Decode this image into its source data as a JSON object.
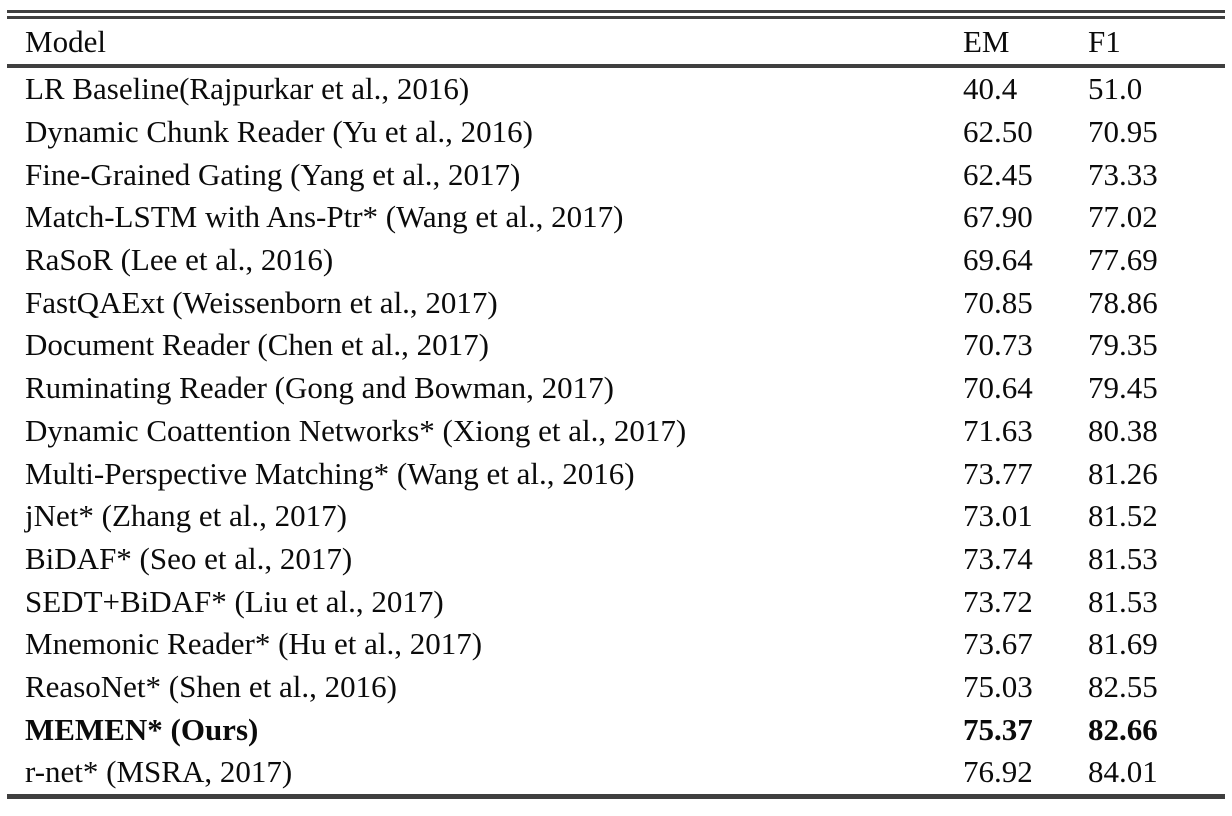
{
  "table": {
    "columns": {
      "model": "Model",
      "em": "EM",
      "f1": "F1"
    },
    "rows": [
      {
        "model": "LR Baseline(Rajpurkar et al., 2016)",
        "em": "40.4",
        "f1": "51.0",
        "emphasis": false
      },
      {
        "model": "Dynamic Chunk Reader (Yu et al., 2016)",
        "em": "62.50",
        "f1": "70.95",
        "emphasis": false
      },
      {
        "model": "Fine-Grained Gating (Yang et al., 2017)",
        "em": "62.45",
        "f1": "73.33",
        "emphasis": false
      },
      {
        "model": "Match-LSTM with Ans-Ptr* (Wang et al., 2017)",
        "em": "67.90",
        "f1": "77.02",
        "emphasis": false
      },
      {
        "model": "RaSoR (Lee et al., 2016)",
        "em": "69.64",
        "f1": "77.69",
        "emphasis": false
      },
      {
        "model": "FastQAExt (Weissenborn et al., 2017)",
        "em": "70.85",
        "f1": "78.86",
        "emphasis": false
      },
      {
        "model": "Document Reader (Chen et al., 2017)",
        "em": "70.73",
        "f1": "79.35",
        "emphasis": false
      },
      {
        "model": "Ruminating Reader (Gong and Bowman, 2017)",
        "em": "70.64",
        "f1": "79.45",
        "emphasis": false
      },
      {
        "model": "Dynamic Coattention Networks* (Xiong et al., 2017)",
        "em": "71.63",
        "f1": "80.38",
        "emphasis": false
      },
      {
        "model": "Multi-Perspective Matching* (Wang et al., 2016)",
        "em": "73.77",
        "f1": "81.26",
        "emphasis": false
      },
      {
        "model": "jNet* (Zhang et al., 2017)",
        "em": "73.01",
        "f1": "81.52",
        "emphasis": false
      },
      {
        "model": "BiDAF* (Seo et al., 2017)",
        "em": "73.74",
        "f1": "81.53",
        "emphasis": false
      },
      {
        "model": "SEDT+BiDAF* (Liu et al., 2017)",
        "em": "73.72",
        "f1": "81.53",
        "emphasis": false
      },
      {
        "model": "Mnemonic Reader* (Hu et al., 2017)",
        "em": "73.67",
        "f1": "81.69",
        "emphasis": false
      },
      {
        "model": "ReasoNet* (Shen et al., 2016)",
        "em": "75.03",
        "f1": "82.55",
        "emphasis": false
      },
      {
        "model": "MEMEN* (Ours)",
        "em": "75.37",
        "f1": "82.66",
        "emphasis": true
      },
      {
        "model": "r-net* (MSRA, 2017)",
        "em": "76.92",
        "f1": "84.01",
        "emphasis": false
      }
    ]
  },
  "colors": {
    "background": "#ffffff",
    "text": "#0b0b0b",
    "rule": "#3f3f3f"
  }
}
